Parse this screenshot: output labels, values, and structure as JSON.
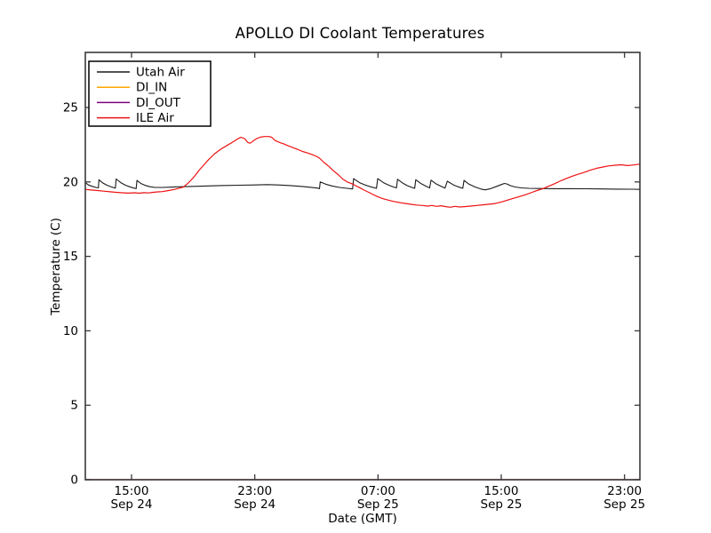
{
  "figure": {
    "background": "#ffffff",
    "spine_color": "#3a3a3a",
    "text_color": "#000000"
  },
  "chart_data": {
    "type": "line",
    "title": "APOLLO DI Coolant Temperatures",
    "xlabel": "Date (GMT)",
    "ylabel": "Temperature (C)",
    "x_unit": "hours since Sep 24 12:00 GMT",
    "xlim": [
      0,
      36
    ],
    "ylim": [
      0,
      28.7
    ],
    "grid": false,
    "legend_position": "upper left",
    "x_ticks": [
      {
        "t": 3,
        "time": "15:00",
        "date": "Sep 24"
      },
      {
        "t": 11,
        "time": "23:00",
        "date": "Sep 24"
      },
      {
        "t": 19,
        "time": "07:00",
        "date": "Sep 25"
      },
      {
        "t": 27,
        "time": "15:00",
        "date": "Sep 25"
      },
      {
        "t": 35,
        "time": "23:00",
        "date": "Sep 25"
      }
    ],
    "y_ticks": [
      0,
      5,
      10,
      15,
      20,
      25
    ],
    "series": [
      {
        "name": "Utah Air",
        "color": "#1a1a1a",
        "width": 1.1,
        "opacity": 1,
        "points": [
          [
            0,
            19.95
          ],
          [
            0.2,
            19.8
          ],
          [
            0.45,
            19.7
          ],
          [
            0.7,
            19.63
          ],
          [
            0.85,
            19.6
          ],
          [
            0.88,
            20.15
          ],
          [
            1.1,
            19.95
          ],
          [
            1.4,
            19.78
          ],
          [
            1.7,
            19.66
          ],
          [
            1.95,
            19.58
          ],
          [
            2.0,
            20.2
          ],
          [
            2.3,
            19.95
          ],
          [
            2.6,
            19.78
          ],
          [
            2.95,
            19.65
          ],
          [
            3.3,
            19.55
          ],
          [
            3.35,
            20.1
          ],
          [
            3.6,
            19.9
          ],
          [
            3.9,
            19.76
          ],
          [
            4.2,
            19.68
          ],
          [
            4.5,
            19.63
          ],
          [
            5,
            19.63
          ],
          [
            5.5,
            19.65
          ],
          [
            6,
            19.67
          ],
          [
            7,
            19.7
          ],
          [
            8,
            19.73
          ],
          [
            9,
            19.76
          ],
          [
            10,
            19.78
          ],
          [
            11,
            19.8
          ],
          [
            11.8,
            19.82
          ],
          [
            12.5,
            19.8
          ],
          [
            13.2,
            19.76
          ],
          [
            14,
            19.7
          ],
          [
            14.6,
            19.64
          ],
          [
            15.1,
            19.58
          ],
          [
            15.2,
            19.55
          ],
          [
            15.25,
            20.0
          ],
          [
            15.6,
            19.85
          ],
          [
            16,
            19.73
          ],
          [
            16.5,
            19.63
          ],
          [
            17,
            19.57
          ],
          [
            17.35,
            19.53
          ],
          [
            17.42,
            20.22
          ],
          [
            17.8,
            19.95
          ],
          [
            18.2,
            19.78
          ],
          [
            18.6,
            19.65
          ],
          [
            18.9,
            19.57
          ],
          [
            18.98,
            20.22
          ],
          [
            19.35,
            19.95
          ],
          [
            19.7,
            19.78
          ],
          [
            20,
            19.66
          ],
          [
            20.2,
            19.6
          ],
          [
            20.27,
            20.18
          ],
          [
            20.6,
            19.92
          ],
          [
            20.9,
            19.75
          ],
          [
            21.2,
            19.63
          ],
          [
            21.38,
            19.57
          ],
          [
            21.45,
            20.15
          ],
          [
            21.8,
            19.88
          ],
          [
            22.1,
            19.72
          ],
          [
            22.35,
            19.6
          ],
          [
            22.44,
            20.12
          ],
          [
            22.8,
            19.85
          ],
          [
            23.1,
            19.7
          ],
          [
            23.35,
            19.58
          ],
          [
            23.5,
            20.05
          ],
          [
            23.9,
            19.8
          ],
          [
            24.2,
            19.67
          ],
          [
            24.5,
            19.57
          ],
          [
            24.58,
            20.1
          ],
          [
            24.9,
            19.85
          ],
          [
            25.3,
            19.66
          ],
          [
            25.7,
            19.52
          ],
          [
            25.95,
            19.47
          ],
          [
            26.3,
            19.55
          ],
          [
            26.7,
            19.7
          ],
          [
            27,
            19.82
          ],
          [
            27.2,
            19.9
          ],
          [
            27.35,
            19.87
          ],
          [
            27.6,
            19.75
          ],
          [
            27.9,
            19.66
          ],
          [
            28.3,
            19.6
          ],
          [
            28.8,
            19.57
          ],
          [
            29.5,
            19.56
          ],
          [
            30.5,
            19.55
          ],
          [
            31.5,
            19.55
          ],
          [
            32.5,
            19.54
          ],
          [
            33.5,
            19.53
          ],
          [
            34.5,
            19.52
          ],
          [
            35.5,
            19.51
          ],
          [
            36,
            19.5
          ]
        ]
      },
      {
        "name": "DI_IN",
        "color": "#ffa500",
        "width": 1.2,
        "opacity": 1,
        "points": [
          [
            0,
            0
          ],
          [
            36,
            0
          ]
        ]
      },
      {
        "name": "DI_OUT",
        "color": "#800080",
        "width": 1.2,
        "opacity": 0.75,
        "points": [
          [
            0,
            0
          ],
          [
            36,
            0
          ]
        ]
      },
      {
        "name": "ILE Air",
        "color": "#ee1111",
        "width": 1.2,
        "opacity": 1,
        "points": [
          [
            0,
            19.5
          ],
          [
            0.4,
            19.46
          ],
          [
            0.8,
            19.42
          ],
          [
            1.2,
            19.38
          ],
          [
            1.6,
            19.34
          ],
          [
            2,
            19.3
          ],
          [
            2.4,
            19.27
          ],
          [
            2.8,
            19.25
          ],
          [
            3.2,
            19.27
          ],
          [
            3.5,
            19.24
          ],
          [
            3.8,
            19.28
          ],
          [
            4.1,
            19.26
          ],
          [
            4.4,
            19.3
          ],
          [
            4.7,
            19.33
          ],
          [
            5,
            19.35
          ],
          [
            5.4,
            19.42
          ],
          [
            5.8,
            19.5
          ],
          [
            6.1,
            19.58
          ],
          [
            6.35,
            19.65
          ],
          [
            6.6,
            19.85
          ],
          [
            6.8,
            20.05
          ],
          [
            7.1,
            20.4
          ],
          [
            7.4,
            20.8
          ],
          [
            7.7,
            21.15
          ],
          [
            8,
            21.5
          ],
          [
            8.4,
            21.9
          ],
          [
            8.8,
            22.2
          ],
          [
            9.2,
            22.45
          ],
          [
            9.6,
            22.7
          ],
          [
            9.9,
            22.9
          ],
          [
            10.1,
            23.0
          ],
          [
            10.35,
            22.9
          ],
          [
            10.55,
            22.65
          ],
          [
            10.7,
            22.6
          ],
          [
            10.9,
            22.75
          ],
          [
            11.1,
            22.9
          ],
          [
            11.35,
            23.0
          ],
          [
            11.6,
            23.05
          ],
          [
            11.9,
            23.05
          ],
          [
            12.1,
            23.0
          ],
          [
            12.3,
            22.8
          ],
          [
            12.5,
            22.7
          ],
          [
            12.7,
            22.62
          ],
          [
            12.9,
            22.55
          ],
          [
            13.1,
            22.45
          ],
          [
            13.3,
            22.38
          ],
          [
            13.5,
            22.3
          ],
          [
            13.8,
            22.18
          ],
          [
            14.1,
            22.05
          ],
          [
            14.4,
            21.95
          ],
          [
            14.7,
            21.85
          ],
          [
            15,
            21.72
          ],
          [
            15.2,
            21.6
          ],
          [
            15.5,
            21.3
          ],
          [
            15.8,
            21.05
          ],
          [
            16.1,
            20.75
          ],
          [
            16.4,
            20.5
          ],
          [
            16.7,
            20.2
          ],
          [
            17,
            20.0
          ],
          [
            17.3,
            19.88
          ],
          [
            17.55,
            19.75
          ],
          [
            17.8,
            19.62
          ],
          [
            18.1,
            19.45
          ],
          [
            18.4,
            19.3
          ],
          [
            18.7,
            19.15
          ],
          [
            19,
            19.0
          ],
          [
            19.3,
            18.88
          ],
          [
            19.6,
            18.8
          ],
          [
            19.9,
            18.72
          ],
          [
            20.2,
            18.65
          ],
          [
            20.5,
            18.6
          ],
          [
            20.8,
            18.55
          ],
          [
            21.1,
            18.5
          ],
          [
            21.5,
            18.45
          ],
          [
            21.9,
            18.42
          ],
          [
            22.2,
            18.38
          ],
          [
            22.5,
            18.42
          ],
          [
            22.8,
            18.36
          ],
          [
            23.1,
            18.4
          ],
          [
            23.4,
            18.34
          ],
          [
            23.7,
            18.3
          ],
          [
            24,
            18.36
          ],
          [
            24.3,
            18.32
          ],
          [
            24.7,
            18.35
          ],
          [
            25,
            18.38
          ],
          [
            25.4,
            18.42
          ],
          [
            25.8,
            18.46
          ],
          [
            26.2,
            18.5
          ],
          [
            26.6,
            18.55
          ],
          [
            27,
            18.65
          ],
          [
            27.4,
            18.78
          ],
          [
            27.8,
            18.9
          ],
          [
            28.2,
            19.02
          ],
          [
            28.6,
            19.15
          ],
          [
            29,
            19.3
          ],
          [
            29.4,
            19.45
          ],
          [
            29.7,
            19.55
          ],
          [
            30,
            19.68
          ],
          [
            30.4,
            19.85
          ],
          [
            30.8,
            20.05
          ],
          [
            31.2,
            20.22
          ],
          [
            31.6,
            20.38
          ],
          [
            32,
            20.52
          ],
          [
            32.4,
            20.65
          ],
          [
            32.8,
            20.8
          ],
          [
            33.2,
            20.92
          ],
          [
            33.6,
            21.0
          ],
          [
            34,
            21.08
          ],
          [
            34.4,
            21.12
          ],
          [
            34.8,
            21.15
          ],
          [
            35.2,
            21.1
          ],
          [
            35.6,
            21.14
          ],
          [
            36,
            21.2
          ]
        ]
      }
    ]
  }
}
